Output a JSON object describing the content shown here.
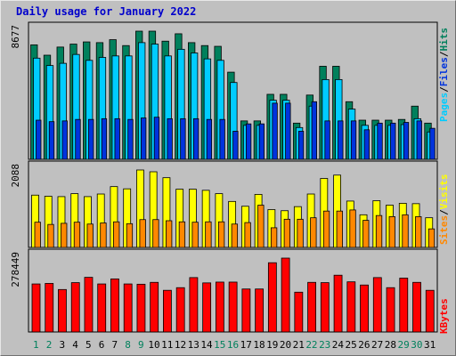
{
  "title": "Daily usage for January 2022",
  "colors": {
    "hits": "#00805c",
    "files": "#00ccff",
    "pages": "#0033dd",
    "visits": "#ffff00",
    "sites": "#ff8800",
    "kbytes": "#ff0000",
    "background": "#c0c0c0",
    "weekend_label": "#00805c",
    "weekday_label": "#000000",
    "title": "#0000cc"
  },
  "chart_data": [
    {
      "type": "bar",
      "name": "hits-files-pages",
      "categories": [
        "1",
        "2",
        "3",
        "4",
        "5",
        "6",
        "7",
        "8",
        "9",
        "10",
        "11",
        "12",
        "13",
        "14",
        "15",
        "16",
        "17",
        "18",
        "19",
        "20",
        "21",
        "22",
        "23",
        "24",
        "25",
        "26",
        "27",
        "28",
        "29",
        "30",
        "31"
      ],
      "max_label": "8677",
      "ymax": 8677,
      "legend": [
        "Pages",
        "Files",
        "Hits"
      ],
      "series": [
        {
          "name": "Hits",
          "values": [
            7750,
            7050,
            7600,
            7800,
            7950,
            7900,
            8100,
            7700,
            8677,
            8677,
            8000,
            8500,
            7900,
            7700,
            7650,
            5900,
            2600,
            2600,
            4400,
            4400,
            2450,
            4350,
            6300,
            6300,
            3900,
            2650,
            2650,
            2650,
            2700,
            3600,
            2450
          ]
        },
        {
          "name": "Files",
          "values": [
            6850,
            6350,
            6500,
            7100,
            6700,
            6900,
            7000,
            7000,
            7900,
            7800,
            7000,
            7450,
            7200,
            6800,
            6700,
            5200,
            2300,
            2300,
            4000,
            4000,
            2150,
            3600,
            5400,
            5400,
            3400,
            2300,
            2300,
            2300,
            2350,
            2750,
            1850
          ]
        },
        {
          "name": "Pages",
          "values": [
            2650,
            2550,
            2600,
            2700,
            2700,
            2750,
            2750,
            2700,
            2800,
            2850,
            2750,
            2750,
            2750,
            2700,
            2700,
            1900,
            2400,
            2400,
            3800,
            3800,
            1900,
            3900,
            2600,
            2600,
            2600,
            2000,
            2450,
            2450,
            2500,
            2600,
            2100
          ]
        }
      ]
    },
    {
      "type": "bar",
      "name": "visits-sites",
      "categories": [
        "1",
        "2",
        "3",
        "4",
        "5",
        "6",
        "7",
        "8",
        "9",
        "10",
        "11",
        "12",
        "13",
        "14",
        "15",
        "16",
        "17",
        "18",
        "19",
        "20",
        "21",
        "22",
        "23",
        "24",
        "25",
        "26",
        "27",
        "28",
        "29",
        "30",
        "31"
      ],
      "max_label": "2088",
      "ymax": 2088,
      "legend": [
        "Sites",
        "Visits"
      ],
      "series": [
        {
          "name": "Visits",
          "values": [
            1410,
            1380,
            1370,
            1450,
            1370,
            1440,
            1640,
            1580,
            2088,
            2040,
            1880,
            1570,
            1570,
            1540,
            1450,
            1240,
            1110,
            1430,
            1020,
            990,
            1100,
            1440,
            1860,
            1950,
            1250,
            880,
            1260,
            1140,
            1190,
            1180,
            800
          ]
        },
        {
          "name": "Sites",
          "values": [
            680,
            620,
            650,
            680,
            630,
            660,
            690,
            640,
            750,
            750,
            720,
            690,
            680,
            690,
            690,
            630,
            670,
            1140,
            530,
            760,
            760,
            800,
            980,
            980,
            1010,
            730,
            860,
            830,
            880,
            830,
            500
          ]
        }
      ]
    },
    {
      "type": "bar",
      "name": "kbytes",
      "categories": [
        "1",
        "2",
        "3",
        "4",
        "5",
        "6",
        "7",
        "8",
        "9",
        "10",
        "11",
        "12",
        "13",
        "14",
        "15",
        "16",
        "17",
        "18",
        "19",
        "20",
        "21",
        "22",
        "23",
        "24",
        "25",
        "26",
        "27",
        "28",
        "29",
        "30",
        "31"
      ],
      "max_label": "278449",
      "ymax": 278449,
      "legend": [
        "KBytes"
      ],
      "series": [
        {
          "name": "KBytes",
          "values": [
            181000,
            183000,
            160000,
            186000,
            206000,
            181000,
            200000,
            181000,
            180000,
            187000,
            157000,
            167000,
            205000,
            185000,
            188000,
            188000,
            162000,
            162000,
            261000,
            278449,
            150000,
            187000,
            186000,
            214000,
            189000,
            177000,
            205000,
            167000,
            203000,
            187000,
            157000
          ]
        }
      ]
    }
  ],
  "weekend_days": [
    1,
    2,
    8,
    9,
    15,
    16,
    22,
    23,
    29,
    30
  ]
}
